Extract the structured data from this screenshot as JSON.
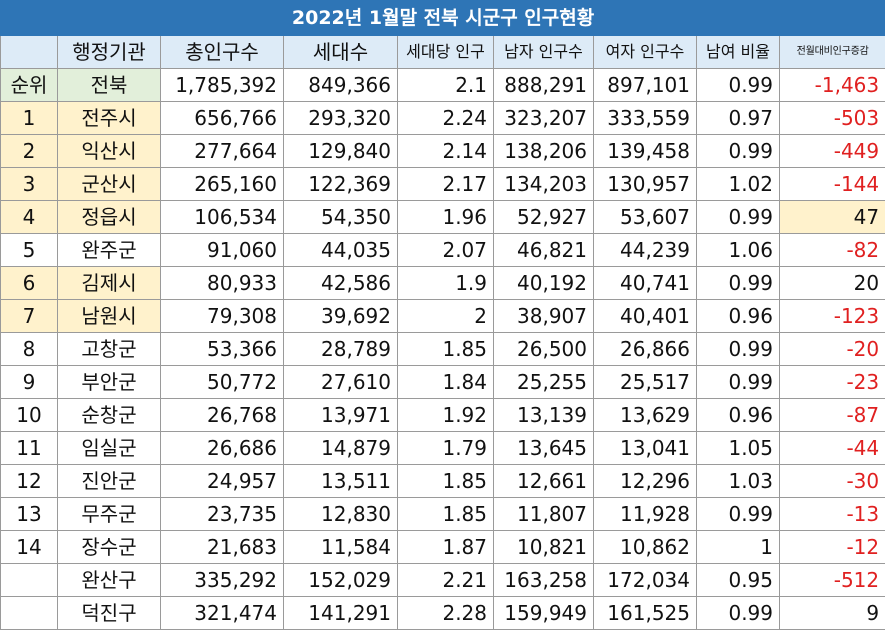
{
  "title": "2022년 1월말 전북 시군구 인구현황",
  "headers": {
    "rank": "",
    "name": "행정기관",
    "total": "총인구수",
    "households": "세대수",
    "per_household": "세대당 인구",
    "male": "남자 인구수",
    "female": "여자 인구수",
    "ratio": "남여 비율",
    "change": "전월대비인구증감"
  },
  "summary_row": {
    "rank": "순위",
    "name": "전북",
    "total": "1,785,392",
    "households": "849,366",
    "per_household": "2.1",
    "male": "888,291",
    "female": "897,101",
    "ratio": "0.99",
    "change": "-1,463"
  },
  "rows": [
    {
      "rank": "1",
      "name": "전주시",
      "total": "656,766",
      "households": "293,320",
      "per_household": "2.24",
      "male": "323,207",
      "female": "333,559",
      "ratio": "0.97",
      "change": "-503"
    },
    {
      "rank": "2",
      "name": "익산시",
      "total": "277,664",
      "households": "129,840",
      "per_household": "2.14",
      "male": "138,206",
      "female": "139,458",
      "ratio": "0.99",
      "change": "-449"
    },
    {
      "rank": "3",
      "name": "군산시",
      "total": "265,160",
      "households": "122,369",
      "per_household": "2.17",
      "male": "134,203",
      "female": "130,957",
      "ratio": "1.02",
      "change": "-144"
    },
    {
      "rank": "4",
      "name": "정읍시",
      "total": "106,534",
      "households": "54,350",
      "per_household": "1.96",
      "male": "52,927",
      "female": "53,607",
      "ratio": "0.99",
      "change": "47"
    },
    {
      "rank": "5",
      "name": "완주군",
      "total": "91,060",
      "households": "44,035",
      "per_household": "2.07",
      "male": "46,821",
      "female": "44,239",
      "ratio": "1.06",
      "change": "-82"
    },
    {
      "rank": "6",
      "name": "김제시",
      "total": "80,933",
      "households": "42,586",
      "per_household": "1.9",
      "male": "40,192",
      "female": "40,741",
      "ratio": "0.99",
      "change": "20"
    },
    {
      "rank": "7",
      "name": "남원시",
      "total": "79,308",
      "households": "39,692",
      "per_household": "2",
      "male": "38,907",
      "female": "40,401",
      "ratio": "0.96",
      "change": "-123"
    },
    {
      "rank": "8",
      "name": "고창군",
      "total": "53,366",
      "households": "28,789",
      "per_household": "1.85",
      "male": "26,500",
      "female": "26,866",
      "ratio": "0.99",
      "change": "-20"
    },
    {
      "rank": "9",
      "name": "부안군",
      "total": "50,772",
      "households": "27,610",
      "per_household": "1.84",
      "male": "25,255",
      "female": "25,517",
      "ratio": "0.99",
      "change": "-23"
    },
    {
      "rank": "10",
      "name": "순창군",
      "total": "26,768",
      "households": "13,971",
      "per_household": "1.92",
      "male": "13,139",
      "female": "13,629",
      "ratio": "0.96",
      "change": "-87"
    },
    {
      "rank": "11",
      "name": "임실군",
      "total": "26,686",
      "households": "14,879",
      "per_household": "1.79",
      "male": "13,645",
      "female": "13,041",
      "ratio": "1.05",
      "change": "-44"
    },
    {
      "rank": "12",
      "name": "진안군",
      "total": "24,957",
      "households": "13,511",
      "per_household": "1.85",
      "male": "12,661",
      "female": "12,296",
      "ratio": "1.03",
      "change": "-30"
    },
    {
      "rank": "13",
      "name": "무주군",
      "total": "23,735",
      "households": "12,830",
      "per_household": "1.85",
      "male": "11,807",
      "female": "11,928",
      "ratio": "0.99",
      "change": "-13"
    },
    {
      "rank": "14",
      "name": "장수군",
      "total": "21,683",
      "households": "11,584",
      "per_household": "1.87",
      "male": "10,821",
      "female": "10,862",
      "ratio": "1",
      "change": "-12"
    },
    {
      "rank": "",
      "name": "완산구",
      "total": "335,292",
      "households": "152,029",
      "per_household": "2.21",
      "male": "163,258",
      "female": "172,034",
      "ratio": "0.95",
      "change": "-512"
    },
    {
      "rank": "",
      "name": "덕진구",
      "total": "321,474",
      "households": "141,291",
      "per_household": "2.28",
      "male": "159,949",
      "female": "161,525",
      "ratio": "0.99",
      "change": "9"
    }
  ],
  "colors": {
    "title_bg": "#2e75b6",
    "header_bg": "#ddebf7",
    "highlight_bg": "#fff2cc",
    "summary_bg": "#e2efda",
    "negative_text": "#e02020"
  }
}
